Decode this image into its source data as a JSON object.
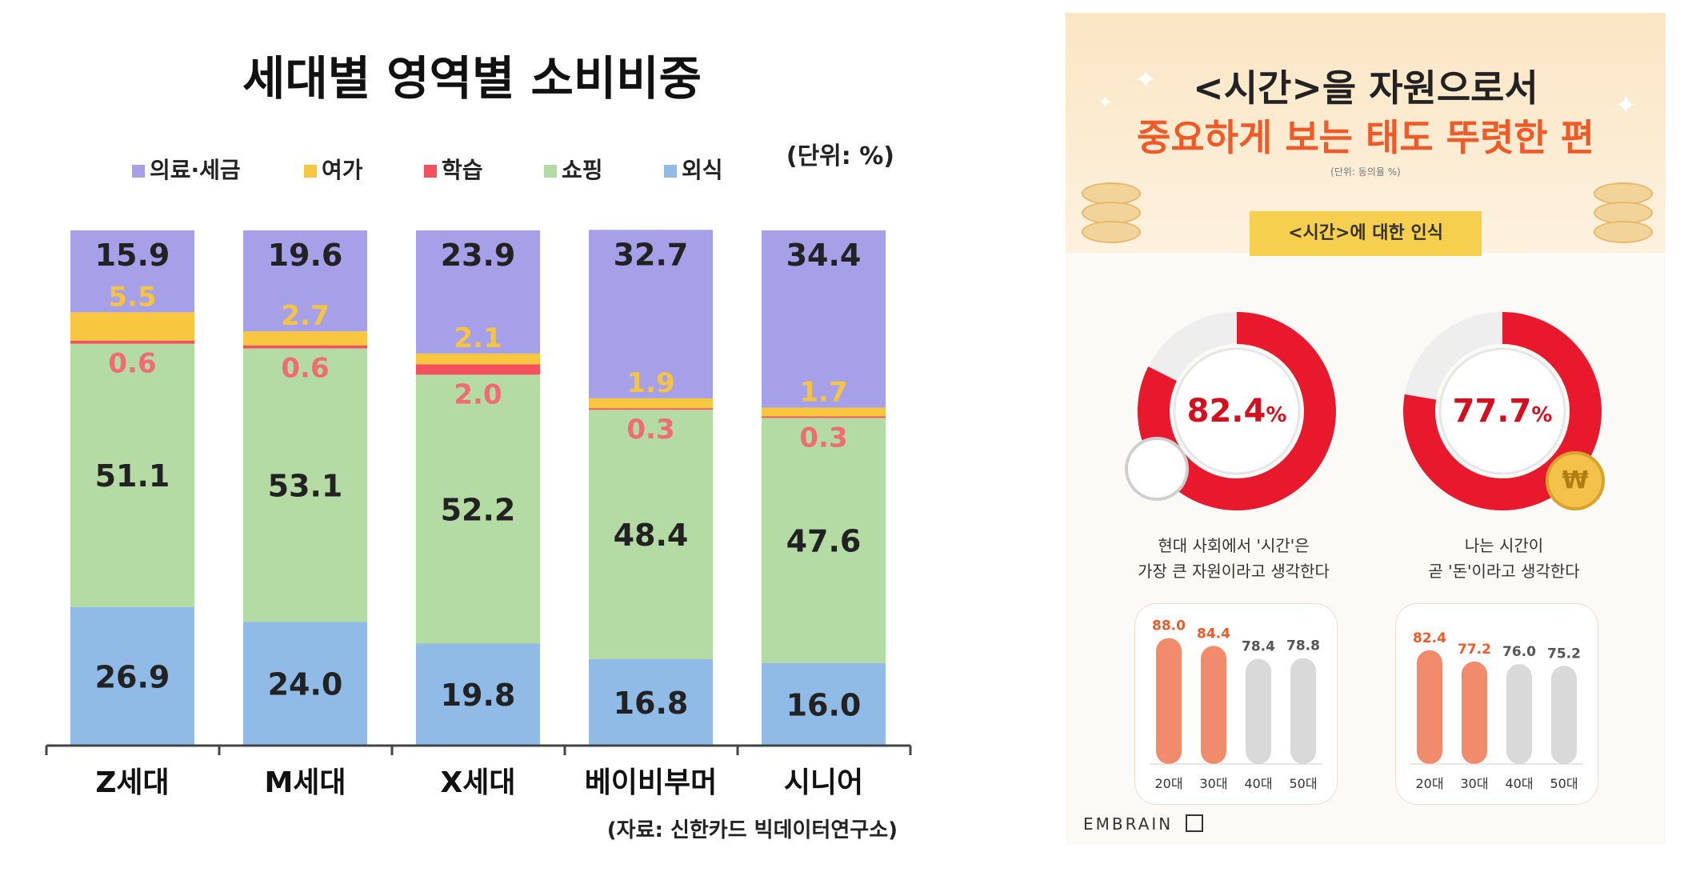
{
  "chart_data": [
    {
      "type": "bar",
      "stacked": true,
      "title": "세대별 영역별 소비비중",
      "unit": "(단위: %)",
      "source": "(자료: 신한카드 빅데이터연구소)",
      "categories": [
        "Z세대",
        "M세대",
        "X세대",
        "베이비부머",
        "시니어"
      ],
      "series": [
        {
          "name": "외식",
          "color": "#8fbbe6",
          "values": [
            26.9,
            24.0,
            19.8,
            16.8,
            16.0
          ]
        },
        {
          "name": "쇼핑",
          "color": "#b5dba4",
          "values": [
            51.1,
            53.1,
            52.2,
            48.4,
            47.6
          ]
        },
        {
          "name": "학습",
          "color": "#f1525d",
          "values": [
            0.6,
            0.6,
            2.0,
            0.3,
            0.3
          ]
        },
        {
          "name": "여가",
          "color": "#f9c73f",
          "values": [
            5.5,
            2.7,
            2.1,
            1.9,
            1.7
          ]
        },
        {
          "name": "의료·세금",
          "color": "#a5a0e8",
          "values": [
            15.9,
            19.6,
            23.9,
            32.7,
            34.4
          ]
        }
      ],
      "legend_order": [
        "의료·세금",
        "여가",
        "학습",
        "쇼핑",
        "외식"
      ],
      "data_labels": [
        [
          "26.9",
          "51.1",
          "0.6",
          "5.5",
          "15.9"
        ],
        [
          "24.0",
          "53.1",
          "0.6",
          "2.7",
          "19.6"
        ],
        [
          "19.8",
          "52.2",
          "2.0",
          "2.1",
          "23.9"
        ],
        [
          "16.8",
          "48.4",
          "0.3",
          "1.9",
          "32.7"
        ],
        [
          "16.0",
          "47.6",
          "0.3",
          "1.7",
          "34.4"
        ]
      ],
      "ylim": [
        0,
        100
      ],
      "legend_position": "top"
    },
    {
      "type": "bar",
      "categories": [
        "20대",
        "30대",
        "40대",
        "50대"
      ],
      "values": [
        88.0,
        84.4,
        78.4,
        78.8
      ],
      "labels": [
        "88.0",
        "84.4",
        "78.4",
        "78.8"
      ],
      "highlight": [
        true,
        true,
        false,
        false
      ],
      "ylim": [
        0,
        100
      ]
    },
    {
      "type": "bar",
      "categories": [
        "20대",
        "30대",
        "40대",
        "50대"
      ],
      "values": [
        82.4,
        77.2,
        76.0,
        75.2
      ],
      "labels": [
        "82.4",
        "77.2",
        "76.0",
        "75.2"
      ],
      "highlight": [
        true,
        true,
        false,
        false
      ],
      "ylim": [
        0,
        100
      ]
    }
  ],
  "infographic": {
    "title_line1": "<시간>을 자원으로서",
    "title_line2": "중요하게 보는 태도 뚜렷한 편",
    "unit": "(단위: 동의율 %)",
    "section_tag": "<시간>에 대한 인식",
    "gauges": [
      {
        "value": 82.4,
        "number": "82.4",
        "percent": "%",
        "caption_line1": "현대 사회에서 '시간'은",
        "caption_line2": "가장 큰 자원이라고 생각한다"
      },
      {
        "value": 77.7,
        "number": "77.7",
        "percent": "%",
        "caption_line1": "나는 시간이",
        "caption_line2": "곧 '돈'이라고 생각한다"
      }
    ],
    "brand": "EMBRAIN",
    "colors": {
      "ring": "#e8192c",
      "highlight_bar": "#f28a6c",
      "gray_bar": "#d9d9d9",
      "accent": "#f05a28"
    }
  }
}
